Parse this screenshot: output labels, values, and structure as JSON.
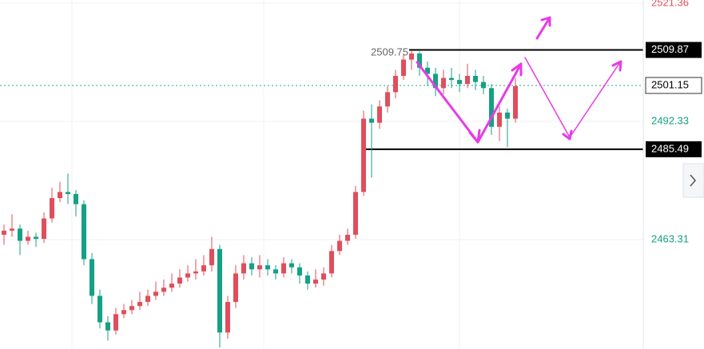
{
  "chart_data": {
    "type": "candlestick",
    "up_color": "#e04e5c",
    "down_color": "#16a085",
    "ylim": [
      2436.45,
      2522.13
    ],
    "yticks": [
      2521.36,
      2492.33,
      2463.31
    ],
    "grid": true,
    "levels": [
      2509.87,
      2485.49
    ],
    "current_price": 2501.15,
    "high_label": "2509.75",
    "open": [
      2464.5,
      2465.5,
      2466.0,
      2463.0,
      2464.0,
      2463.5,
      2468.5,
      2473.5,
      2475.0,
      2474.5,
      2472.0,
      2458.5,
      2449.5,
      2443.0,
      2441.0,
      2445.0,
      2446.0,
      2447.0,
      2448.0,
      2449.5,
      2450.5,
      2451.5,
      2452.5,
      2454.0,
      2455.0,
      2455.5,
      2457.0,
      2461.0,
      2440.5,
      2448.0,
      2455.0,
      2457.5,
      2456.0,
      2457.0,
      2456.0,
      2455.0,
      2457.5,
      2456.5,
      2454.5,
      2452.5,
      2453.5,
      2455.0,
      2460.5,
      2463.0,
      2464.5,
      2475.0,
      2493.0,
      2492.0,
      2496.0,
      2499.5,
      2503.5,
      2507.5,
      2509.0,
      2505.5,
      2504.0,
      2500.5,
      2503.0,
      2502.5,
      2501.5,
      2503.5,
      2502.0,
      2500.5,
      2491.0,
      2494.5,
      2493.0
    ],
    "high": [
      2467.0,
      2469.5,
      2467.0,
      2465.5,
      2465.0,
      2470.0,
      2476.0,
      2477.5,
      2479.5,
      2475.5,
      2473.0,
      2460.0,
      2451.0,
      2444.5,
      2446.5,
      2447.5,
      2448.5,
      2450.5,
      2451.0,
      2453.0,
      2453.5,
      2455.0,
      2456.0,
      2457.0,
      2458.5,
      2459.5,
      2464.0,
      2462.0,
      2449.5,
      2457.0,
      2459.5,
      2459.0,
      2459.5,
      2458.5,
      2457.0,
      2459.0,
      2458.5,
      2457.5,
      2455.5,
      2456.0,
      2456.5,
      2462.0,
      2464.5,
      2466.0,
      2476.5,
      2495.0,
      2496.5,
      2497.5,
      2501.0,
      2505.0,
      2509.0,
      2509.75,
      2509.5,
      2507.0,
      2505.5,
      2505.0,
      2505.5,
      2504.0,
      2506.5,
      2505.0,
      2503.5,
      2501.5,
      2496.0,
      2495.5,
      2503.0
    ],
    "low": [
      2462.0,
      2464.0,
      2459.5,
      2462.0,
      2461.5,
      2462.5,
      2467.5,
      2472.5,
      2472.0,
      2469.0,
      2457.0,
      2447.5,
      2441.5,
      2438.5,
      2440.0,
      2444.0,
      2445.0,
      2446.0,
      2447.0,
      2448.5,
      2449.5,
      2450.5,
      2451.5,
      2453.0,
      2453.5,
      2454.5,
      2455.5,
      2436.8,
      2439.0,
      2446.5,
      2453.5,
      2454.5,
      2454.0,
      2454.5,
      2453.5,
      2454.0,
      2455.0,
      2452.5,
      2451.0,
      2451.5,
      2452.0,
      2454.0,
      2459.5,
      2462.0,
      2463.5,
      2474.0,
      2478.5,
      2490.5,
      2494.5,
      2498.0,
      2502.5,
      2505.0,
      2503.5,
      2501.0,
      2498.5,
      2499.0,
      2500.5,
      2499.5,
      2500.5,
      2500.0,
      2499.0,
      2489.0,
      2487.5,
      2486.0,
      2492.0
    ],
    "close": [
      2465.5,
      2466.0,
      2463.0,
      2464.0,
      2463.5,
      2468.5,
      2473.5,
      2475.0,
      2474.5,
      2472.0,
      2458.5,
      2449.5,
      2443.0,
      2441.0,
      2445.0,
      2446.0,
      2447.0,
      2448.0,
      2449.5,
      2450.5,
      2451.5,
      2452.5,
      2454.0,
      2455.0,
      2455.5,
      2457.0,
      2461.0,
      2440.5,
      2448.0,
      2455.0,
      2457.5,
      2456.0,
      2457.0,
      2456.0,
      2455.0,
      2457.5,
      2456.5,
      2454.5,
      2452.5,
      2453.5,
      2455.0,
      2460.5,
      2463.0,
      2464.5,
      2475.0,
      2493.0,
      2492.0,
      2496.0,
      2499.5,
      2503.5,
      2507.5,
      2509.0,
      2505.5,
      2504.0,
      2500.5,
      2503.0,
      2502.5,
      2501.5,
      2503.5,
      2502.0,
      2500.5,
      2491.0,
      2494.5,
      2493.0,
      2501.0
    ]
  }
}
